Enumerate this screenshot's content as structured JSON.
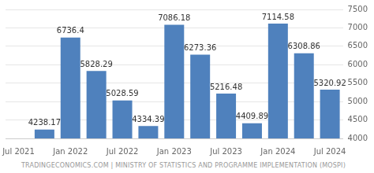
{
  "chart_data": {
    "type": "bar",
    "categories": [
      "Jul 2021",
      null,
      "Jan 2022",
      null,
      "Jul 2022",
      null,
      "Jan 2023",
      null,
      "Jul 2023",
      null,
      "Jan 2024",
      null,
      "Jul 2024"
    ],
    "values": [
      null,
      4238.17,
      6736.4,
      5828.29,
      5028.59,
      4334.39,
      7086.18,
      6273.36,
      5216.48,
      4409.89,
      7114.58,
      6308.86,
      5320.92
    ],
    "color": "#4f81bd",
    "ylim": [
      4000,
      7500
    ],
    "yticks": [
      4000,
      4500,
      5000,
      5500,
      6000,
      6500,
      7000,
      7500
    ],
    "grid": true,
    "data_labels": true,
    "annotations": [
      "TRADINGECONOMICS.COM | MINISTRY OF STATISTICS AND PROGRAMME IMPLEMENTATION (MOSPI)"
    ]
  }
}
